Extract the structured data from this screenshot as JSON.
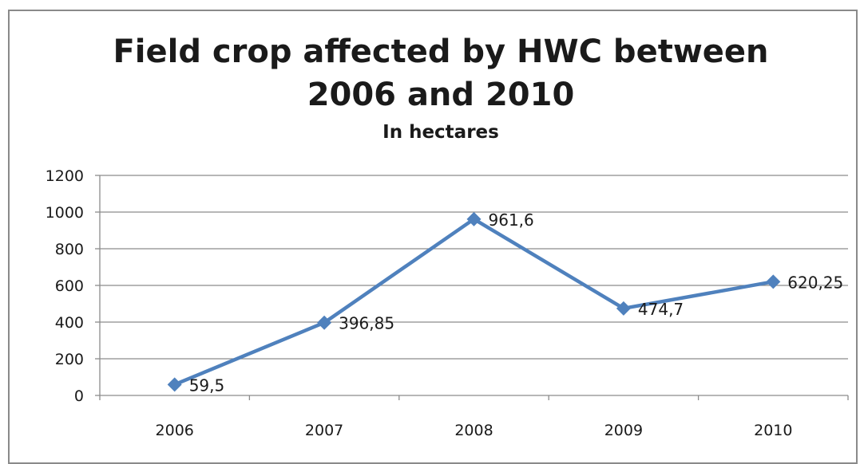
{
  "chart_data": {
    "type": "line",
    "title_line1": "Field crop affected by HWC between",
    "title_line2": "2006 and 2010",
    "subtitle": "In hectares",
    "categories": [
      "2006",
      "2007",
      "2008",
      "2009",
      "2010"
    ],
    "series": [
      {
        "values": [
          59.5,
          396.85,
          961.6,
          474.7,
          620.25
        ],
        "labels": [
          "59,5",
          "396,85",
          "961,6",
          "474,7",
          "620,25"
        ],
        "color": "#4f81bd"
      }
    ],
    "ylim": [
      0,
      1200
    ],
    "yticks": [
      0,
      200,
      400,
      600,
      800,
      1000,
      1200
    ],
    "grid": true,
    "gridline_color": "#8c8c8c",
    "axis_color": "#8c8c8c",
    "legend": "none"
  }
}
